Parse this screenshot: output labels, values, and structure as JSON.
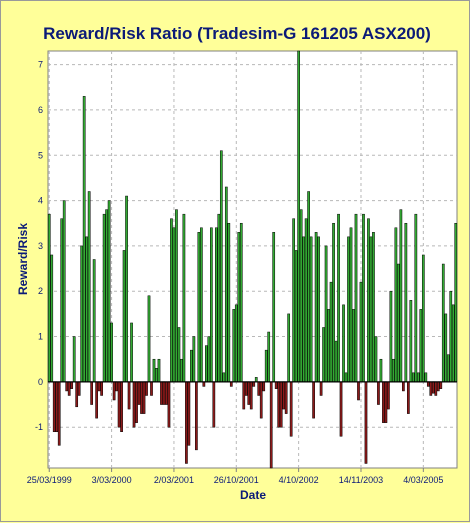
{
  "chart_data": {
    "type": "bar",
    "title": "Reward/Risk Ratio (Tradesim-G 161205 ASX200)",
    "xlabel": "Date",
    "ylabel": "Reward/Risk",
    "ylim": [
      -1.9,
      7.3
    ],
    "yticks": [
      -1,
      0,
      1,
      2,
      3,
      4,
      5,
      6,
      7
    ],
    "x_tick_labels": [
      "25/03/1999",
      "3/03/2000",
      "2/03/2001",
      "26/10/2001",
      "4/10/2002",
      "14/11/2003",
      "4/03/2005"
    ],
    "grid": true,
    "legend": "none",
    "colors": {
      "positive": "#33aa33",
      "negative": "#8b1a1a",
      "background": "#ffff99",
      "plot_background": "#ffffff",
      "title": "#0b1a78"
    },
    "values": [
      3.7,
      2.8,
      -1.1,
      -1.1,
      -1.4,
      3.6,
      4.0,
      -0.2,
      -0.3,
      -0.15,
      1.0,
      -0.55,
      -0.3,
      3.0,
      6.3,
      3.2,
      4.2,
      -0.5,
      2.7,
      -0.8,
      -0.2,
      -0.3,
      3.7,
      3.8,
      4.0,
      1.3,
      -0.4,
      -0.2,
      -1.0,
      -1.1,
      2.9,
      4.1,
      -0.6,
      1.3,
      -1.0,
      -0.9,
      -0.5,
      -0.7,
      -0.7,
      -0.3,
      1.9,
      -0.3,
      0.5,
      0.3,
      0.5,
      -0.5,
      -0.5,
      -0.5,
      -1.0,
      3.6,
      3.4,
      3.8,
      1.2,
      0.5,
      3.7,
      -1.8,
      -1.4,
      0.7,
      1.0,
      -1.5,
      3.3,
      3.4,
      -0.1,
      0.8,
      1.0,
      3.4,
      -1.0,
      3.4,
      3.7,
      5.1,
      0.2,
      4.3,
      3.5,
      -0.1,
      1.6,
      1.7,
      3.3,
      3.5,
      -0.6,
      -0.3,
      -0.5,
      -0.6,
      -0.1,
      0.1,
      -0.3,
      -0.8,
      -0.2,
      0.7,
      1.1,
      -1.9,
      3.3,
      -0.15,
      -1.0,
      -1.0,
      -0.6,
      -0.7,
      1.5,
      -1.2,
      3.6,
      2.9,
      7.3,
      3.8,
      3.2,
      3.6,
      4.2,
      3.2,
      -0.8,
      3.3,
      3.2,
      -0.3,
      1.2,
      3.0,
      1.6,
      2.2,
      3.5,
      0.9,
      3.7,
      -1.2,
      1.7,
      0.2,
      3.2,
      3.4,
      1.6,
      3.7,
      -0.4,
      2.2,
      3.7,
      -1.8,
      3.6,
      3.2,
      3.3,
      1.0,
      -0.5,
      0.5,
      -0.9,
      -0.9,
      -0.6,
      2.0,
      0.5,
      3.4,
      2.6,
      3.8,
      -0.2,
      3.5,
      -0.7,
      1.8,
      0.2,
      3.7,
      0.2,
      1.6,
      2.8,
      0.2,
      -0.1,
      -0.3,
      -0.25,
      -0.3,
      -0.2,
      -0.15,
      2.6,
      1.5,
      0.6,
      2.0,
      1.7,
      3.5
    ]
  }
}
